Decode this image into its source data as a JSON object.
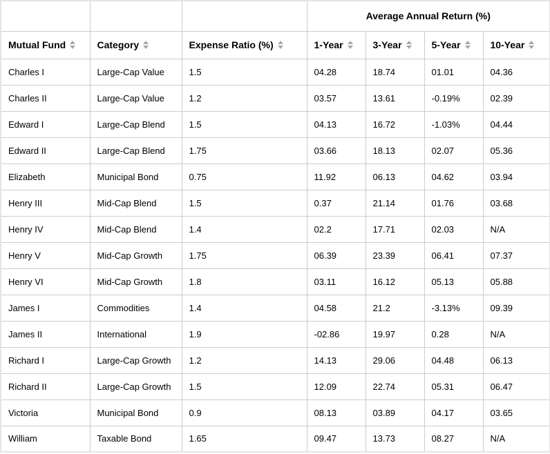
{
  "colors": {
    "border": "#cccccc",
    "outer-border": "#e4e4e4",
    "text": "#000000",
    "sort-icon": "#a6a6a6",
    "background": "#ffffff"
  },
  "table": {
    "group_header": "Average Annual Return (%)",
    "columns": [
      {
        "key": "mutual-fund",
        "label": "Mutual Fund"
      },
      {
        "key": "category",
        "label": "Category"
      },
      {
        "key": "expense-ratio",
        "label": "Expense Ratio (%)"
      },
      {
        "key": "1-year",
        "label": "1-Year"
      },
      {
        "key": "3-year",
        "label": "3-Year"
      },
      {
        "key": "5-year",
        "label": "5-Year"
      },
      {
        "key": "10-year",
        "label": "10-Year"
      }
    ],
    "rows": [
      [
        "Charles I",
        "Large-Cap Value",
        "1.5",
        "04.28",
        "18.74",
        "01.01",
        "04.36"
      ],
      [
        "Charles II",
        "Large-Cap Value",
        "1.2",
        "03.57",
        "13.61",
        "-0.19%",
        "02.39"
      ],
      [
        "Edward I",
        "Large-Cap Blend",
        "1.5",
        "04.13",
        "16.72",
        "-1.03%",
        "04.44"
      ],
      [
        "Edward II",
        "Large-Cap Blend",
        "1.75",
        "03.66",
        "18.13",
        "02.07",
        "05.36"
      ],
      [
        "Elizabeth",
        "Municipal Bond",
        "0.75",
        "11.92",
        "06.13",
        "04.62",
        "03.94"
      ],
      [
        "Henry III",
        "Mid-Cap Blend",
        "1.5",
        "0.37",
        "21.14",
        "01.76",
        "03.68"
      ],
      [
        "Henry IV",
        "Mid-Cap Blend",
        "1.4",
        "02.2",
        "17.71",
        "02.03",
        "N/A"
      ],
      [
        "Henry V",
        "Mid-Cap Growth",
        "1.75",
        "06.39",
        "23.39",
        "06.41",
        "07.37"
      ],
      [
        "Henry VI",
        "Mid-Cap Growth",
        "1.8",
        "03.11",
        "16.12",
        "05.13",
        "05.88"
      ],
      [
        "James I",
        "Commodities",
        "1.4",
        "04.58",
        "21.2",
        "-3.13%",
        "09.39"
      ],
      [
        "James II",
        "International",
        "1.9",
        "-02.86",
        "19.97",
        "0.28",
        "N/A"
      ],
      [
        "Richard I",
        "Large-Cap Growth",
        "1.2",
        "14.13",
        "29.06",
        "04.48",
        "06.13"
      ],
      [
        "Richard II",
        "Large-Cap Growth",
        "1.5",
        "12.09",
        "22.74",
        "05.31",
        "06.47"
      ],
      [
        "Victoria",
        "Municipal Bond",
        "0.9",
        "08.13",
        "03.89",
        "04.17",
        "03.65"
      ],
      [
        "William",
        "Taxable Bond",
        "1.65",
        "09.47",
        "13.73",
        "08.27",
        "N/A"
      ]
    ]
  }
}
